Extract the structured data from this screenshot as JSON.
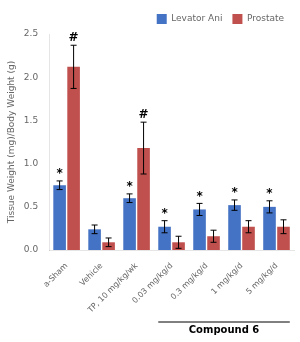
{
  "chart_data": {
    "type": "bar",
    "categories": [
      "a-Sham",
      "Vehicle",
      "TP, 10 mg/kg/wk",
      "0.03 mg/kg/d",
      "0.3 mg/kg/d",
      "1 mg/kg/d",
      "5 mg/kg/d"
    ],
    "series": [
      {
        "name": "Levator Ani",
        "color": "#4472C4",
        "values": [
          0.75,
          0.24,
          0.6,
          0.27,
          0.47,
          0.52,
          0.5
        ],
        "errors": [
          0.05,
          0.05,
          0.05,
          0.07,
          0.07,
          0.06,
          0.07
        ]
      },
      {
        "name": "Prostate",
        "color": "#C0504D",
        "values": [
          2.12,
          0.09,
          1.18,
          0.09,
          0.16,
          0.27,
          0.27
        ],
        "errors": [
          0.25,
          0.05,
          0.3,
          0.07,
          0.07,
          0.07,
          0.08
        ]
      }
    ],
    "ylabel": "Tissue Weight (mg)/Body Weight (g)",
    "ylim": [
      0,
      2.5
    ],
    "yticks": [
      {
        "value": 0,
        "label": "0.0"
      },
      0.5,
      {
        "value": 1.0,
        "label": "1.0"
      },
      1.5,
      {
        "value": 2.0,
        "label": "2.0"
      },
      2.5
    ],
    "grid": false,
    "legend": "upper right",
    "annotations": [
      {
        "text": "*",
        "series": "Levator Ani",
        "category": "a-Sham"
      },
      {
        "text": "*",
        "series": "Levator Ani",
        "category": "TP, 10 mg/kg/wk"
      },
      {
        "text": "*",
        "series": "Levator Ani",
        "category": "0.03 mg/kg/d"
      },
      {
        "text": "*",
        "series": "Levator Ani",
        "category": "0.3 mg/kg/d"
      },
      {
        "text": "*",
        "series": "Levator Ani",
        "category": "1 mg/kg/d"
      },
      {
        "text": "*",
        "series": "Levator Ani",
        "category": "5 mg/kg/d"
      },
      {
        "text": "#",
        "series": "Prostate",
        "category": "a-Sham"
      },
      {
        "text": "#",
        "series": "Prostate",
        "category": "TP, 10 mg/kg/wk"
      },
      {
        "text": "Compound 6",
        "categories": [
          "0.03 mg/kg/d",
          "0.3 mg/kg/d",
          "1 mg/kg/d",
          "5 mg/kg/d"
        ]
      }
    ]
  }
}
